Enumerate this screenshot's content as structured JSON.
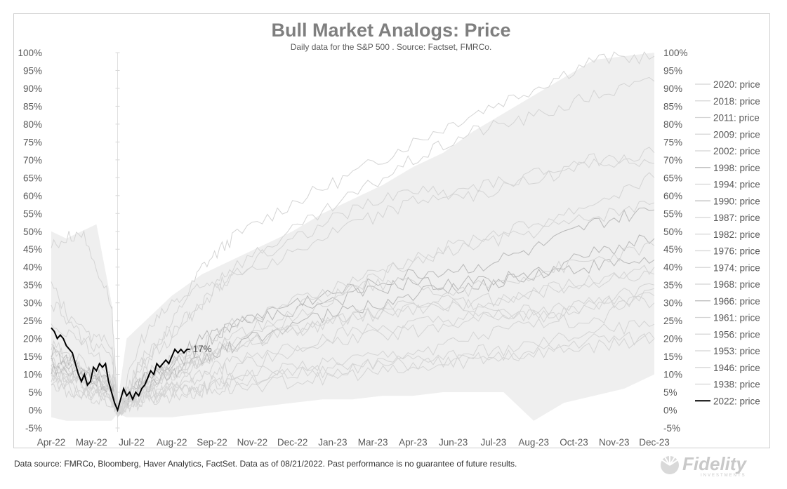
{
  "page": {
    "footer": "Data source: FMRCo, Bloomberg, Haver Analytics, FactSet. Data as of 08/21/2022. Past performance is no guarantee of future results.",
    "logo_text": "Fidelity",
    "logo_subtext": "INVESTMENTS"
  },
  "chart_data": {
    "type": "line",
    "title": "Bull Market Analogs: Price",
    "subtitle": "Daily data for the S&P 500 .  Source: Factset, FMRCo.",
    "x_tick_labels": [
      "Apr-22",
      "May-22",
      "Jul-22",
      "Aug-22",
      "Sep-22",
      "Nov-22",
      "Dec-22",
      "Jan-23",
      "Mar-23",
      "Apr-23",
      "Jun-23",
      "Jul-23",
      "Aug-23",
      "Oct-23",
      "Nov-23",
      "Dec-23"
    ],
    "y_tick_labels": [
      "100%",
      "95%",
      "90%",
      "85%",
      "80%",
      "75%",
      "70%",
      "65%",
      "60%",
      "55%",
      "50%",
      "45%",
      "40%",
      "35%",
      "30%",
      "25%",
      "20%",
      "15%",
      "10%",
      "5%",
      "0%",
      "-5%"
    ],
    "ylim": [
      -5,
      100
    ],
    "x_range_months": [
      0,
      20
    ],
    "trough_marker_month": 2.2,
    "grid": false,
    "legend_position": "right",
    "annotation": {
      "text": "17%",
      "x": 4.6,
      "y": 17
    },
    "colors": {
      "analog": "#d4d4d4",
      "analog_dark": "#b8b8b8",
      "highlight": "#000000",
      "band": "#efefef"
    },
    "band": {
      "x": [
        0,
        0.5,
        1,
        1.5,
        2,
        2.2,
        2.5,
        3,
        3.5,
        4,
        5,
        6,
        7,
        8,
        9,
        10,
        11,
        12,
        13,
        14,
        15,
        16,
        17,
        18,
        19,
        20
      ],
      "upper": [
        50,
        48,
        50,
        52,
        30,
        2,
        20,
        24,
        28,
        32,
        38,
        42,
        46,
        50,
        55,
        59,
        63,
        68,
        72,
        78,
        83,
        88,
        93,
        98,
        99,
        100
      ],
      "lower": [
        -2,
        -3,
        -3,
        -3,
        -3,
        -1,
        -2,
        -2,
        -2,
        -2,
        -1,
        0,
        1,
        2,
        3,
        3,
        4,
        4,
        5,
        5,
        5,
        -3,
        2,
        4,
        6,
        10
      ]
    },
    "series": [
      {
        "name": "2020: price",
        "x": [
          0,
          1,
          2,
          2.2,
          3,
          4,
          5,
          6,
          8,
          10,
          12,
          14,
          16,
          18,
          20
        ],
        "values": [
          35,
          20,
          10,
          0,
          14,
          24,
          40,
          48,
          58,
          66,
          75,
          83,
          90,
          98,
          99
        ],
        "dark": false
      },
      {
        "name": "2018: price",
        "x": [
          0,
          1,
          2,
          2.2,
          3,
          4,
          5,
          6,
          8,
          10,
          12,
          14,
          16,
          18,
          20
        ],
        "values": [
          18,
          11,
          7,
          0,
          4,
          6,
          6,
          8,
          10,
          12,
          13,
          14,
          16,
          20,
          20
        ],
        "dark": false
      },
      {
        "name": "2011: price",
        "x": [
          0,
          1,
          2,
          2.2,
          3,
          4,
          5,
          6,
          8,
          10,
          12,
          14,
          16,
          18,
          20
        ],
        "values": [
          14,
          10,
          6,
          0,
          8,
          12,
          16,
          20,
          26,
          34,
          42,
          48,
          52,
          58,
          65
        ],
        "dark": false
      },
      {
        "name": "2009: price",
        "x": [
          0,
          1,
          2,
          2.2,
          3,
          4,
          5,
          6,
          8,
          10,
          12,
          14,
          16,
          18,
          20
        ],
        "values": [
          46,
          50,
          30,
          0,
          20,
          30,
          34,
          40,
          50,
          60,
          70,
          78,
          82,
          88,
          92
        ],
        "dark": false
      },
      {
        "name": "2002: price",
        "x": [
          0,
          1,
          2,
          2.2,
          3,
          4,
          5,
          6,
          8,
          10,
          12,
          14,
          16,
          18,
          20
        ],
        "values": [
          18,
          14,
          8,
          0,
          6,
          10,
          13,
          18,
          22,
          26,
          28,
          30,
          33,
          36,
          38
        ],
        "dark": false
      },
      {
        "name": "1998: price",
        "x": [
          0,
          1,
          2,
          2.2,
          3,
          4,
          5,
          6,
          8,
          10,
          12,
          14,
          16,
          18,
          20
        ],
        "values": [
          16,
          12,
          8,
          0,
          8,
          12,
          18,
          24,
          30,
          34,
          38,
          40,
          45,
          52,
          56
        ],
        "dark": true
      },
      {
        "name": "1994: price",
        "x": [
          0,
          1,
          2,
          2.2,
          3,
          4,
          5,
          6,
          8,
          10,
          12,
          14,
          16,
          18,
          20
        ],
        "values": [
          10,
          8,
          5,
          0,
          3,
          5,
          7,
          9,
          10,
          12,
          14,
          16,
          18,
          22,
          24
        ],
        "dark": false
      },
      {
        "name": "1990: price",
        "x": [
          0,
          1,
          2,
          2.2,
          3,
          4,
          5,
          6,
          8,
          10,
          12,
          14,
          16,
          18,
          20
        ],
        "values": [
          14,
          10,
          6,
          0,
          8,
          14,
          20,
          24,
          28,
          32,
          36,
          34,
          38,
          44,
          48
        ],
        "dark": true
      },
      {
        "name": "1987: price",
        "x": [
          0,
          1,
          2,
          2.2,
          3,
          4,
          5,
          6,
          8,
          10,
          12,
          14,
          16,
          18,
          20
        ],
        "values": [
          12,
          8,
          4,
          0,
          6,
          10,
          14,
          18,
          22,
          26,
          28,
          30,
          33,
          36,
          40
        ],
        "dark": false
      },
      {
        "name": "1982: price",
        "x": [
          0,
          1,
          2,
          2.2,
          3,
          4,
          5,
          6,
          8,
          10,
          12,
          14,
          16,
          18,
          20
        ],
        "values": [
          24,
          20,
          16,
          0,
          14,
          22,
          30,
          38,
          44,
          52,
          58,
          62,
          66,
          70,
          72
        ],
        "dark": false
      },
      {
        "name": "1976: price",
        "x": [
          0,
          1,
          2,
          2.2,
          3,
          4,
          5,
          6,
          8,
          10,
          12,
          14,
          16,
          18,
          20
        ],
        "values": [
          10,
          7,
          4,
          0,
          4,
          8,
          10,
          14,
          18,
          22,
          24,
          26,
          26,
          30,
          32
        ],
        "dark": false
      },
      {
        "name": "1974: price",
        "x": [
          0,
          1,
          2,
          2.2,
          3,
          4,
          5,
          6,
          8,
          10,
          12,
          14,
          16,
          18,
          20
        ],
        "values": [
          8,
          4,
          2,
          0,
          6,
          10,
          14,
          20,
          28,
          34,
          36,
          28,
          26,
          24,
          34
        ],
        "dark": false
      },
      {
        "name": "1968: price",
        "x": [
          0,
          1,
          2,
          2.2,
          3,
          4,
          5,
          6,
          8,
          10,
          12,
          14,
          16,
          18,
          20
        ],
        "values": [
          16,
          12,
          8,
          0,
          10,
          14,
          18,
          24,
          30,
          36,
          42,
          46,
          50,
          54,
          58
        ],
        "dark": false
      },
      {
        "name": "1966: price",
        "x": [
          0,
          1,
          2,
          2.2,
          3,
          4,
          5,
          6,
          8,
          10,
          12,
          14,
          16,
          18,
          20
        ],
        "values": [
          12,
          10,
          6,
          0,
          6,
          10,
          14,
          18,
          24,
          28,
          32,
          36,
          38,
          40,
          42
        ],
        "dark": true
      },
      {
        "name": "1961: price",
        "x": [
          0,
          1,
          2,
          2.2,
          3,
          4,
          5,
          6,
          8,
          10,
          12,
          14,
          16,
          18,
          20
        ],
        "values": [
          10,
          8,
          5,
          0,
          4,
          6,
          10,
          12,
          16,
          20,
          22,
          26,
          28,
          30,
          30
        ],
        "dark": false
      },
      {
        "name": "1956: price",
        "x": [
          0,
          1,
          2,
          2.2,
          3,
          4,
          5,
          6,
          8,
          10,
          12,
          14,
          16,
          18,
          20
        ],
        "values": [
          6,
          5,
          3,
          0,
          2,
          4,
          5,
          6,
          8,
          10,
          11,
          14,
          16,
          18,
          20
        ],
        "dark": false
      },
      {
        "name": "1953: price",
        "x": [
          0,
          1,
          2,
          2.2,
          3,
          4,
          5,
          6,
          8,
          10,
          12,
          14,
          16,
          18,
          20
        ],
        "values": [
          12,
          8,
          5,
          0,
          6,
          10,
          14,
          18,
          22,
          26,
          30,
          34,
          38,
          42,
          46
        ],
        "dark": false
      },
      {
        "name": "1946: price",
        "x": [
          0,
          1,
          2,
          2.2,
          3,
          4,
          5,
          6,
          8,
          10,
          12,
          14,
          16,
          18,
          20
        ],
        "values": [
          8,
          6,
          3,
          0,
          3,
          5,
          7,
          9,
          12,
          14,
          16,
          20,
          24,
          30,
          35
        ],
        "dark": false
      },
      {
        "name": "1938: price",
        "x": [
          0,
          1,
          2,
          2.2,
          3,
          4,
          5,
          6,
          8,
          10,
          12,
          14,
          16,
          18,
          20
        ],
        "values": [
          30,
          22,
          18,
          0,
          12,
          20,
          30,
          38,
          48,
          56,
          62,
          60,
          64,
          70,
          69
        ],
        "dark": false
      },
      {
        "name": "2022: price",
        "x": [
          0,
          0.1,
          0.2,
          0.3,
          0.4,
          0.5,
          0.6,
          0.7,
          0.8,
          0.9,
          1.0,
          1.1,
          1.2,
          1.3,
          1.4,
          1.5,
          1.6,
          1.7,
          1.8,
          1.9,
          2.0,
          2.1,
          2.2,
          2.3,
          2.4,
          2.5,
          2.6,
          2.7,
          2.8,
          2.9,
          3.0,
          3.1,
          3.2,
          3.3,
          3.4,
          3.5,
          3.6,
          3.7,
          3.8,
          3.9,
          4.0,
          4.1,
          4.2,
          4.3,
          4.4,
          4.5,
          4.6
        ],
        "values": [
          23,
          22,
          20,
          21,
          20,
          18,
          17,
          16,
          13,
          10,
          8,
          10,
          7,
          8,
          12,
          11,
          13,
          12,
          13,
          8,
          5,
          2,
          0,
          3,
          6,
          4,
          5,
          3,
          5,
          4,
          6,
          7,
          9,
          11,
          10,
          13,
          12,
          13,
          14,
          13,
          15,
          17,
          16,
          17,
          16,
          17,
          17
        ],
        "dark": false,
        "highlight": true
      }
    ]
  }
}
